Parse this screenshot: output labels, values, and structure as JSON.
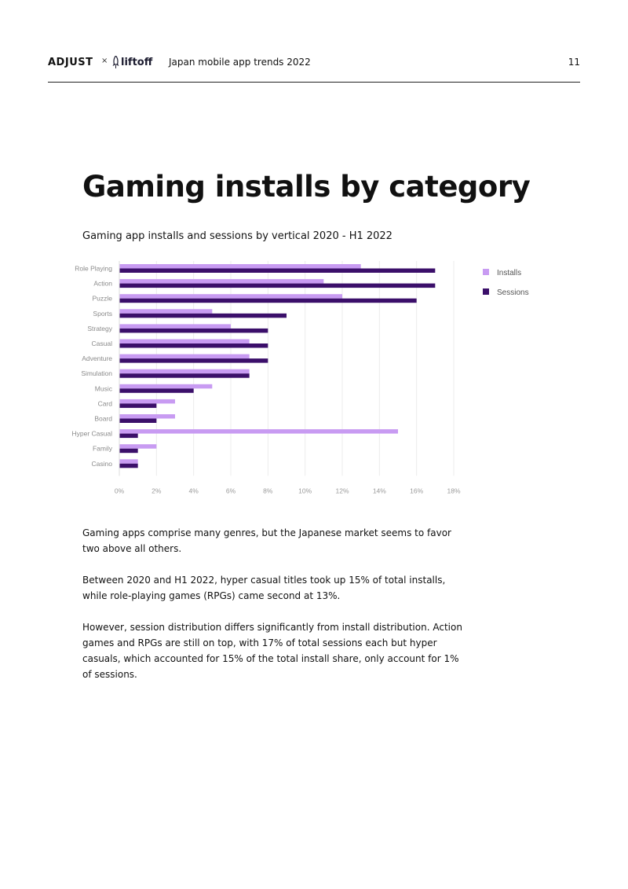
{
  "header": {
    "brand_adjust": "ADJUST",
    "brand_separator": "×",
    "brand_liftoff": "liftoff",
    "title": "Japan mobile app trends 2022",
    "page_number": "11"
  },
  "page_title": "Gaming installs by category",
  "chart_subtitle": "Gaming app installs and sessions by vertical 2020 - H1 2022",
  "chart_data": {
    "type": "bar",
    "orientation": "horizontal",
    "categories": [
      "Role Playing",
      "Action",
      "Puzzle",
      "Sports",
      "Strategy",
      "Casual",
      "Adventure",
      "Simulation",
      "Music",
      "Card",
      "Board",
      "Hyper Casual",
      "Family",
      "Casino"
    ],
    "series": [
      {
        "name": "Installs",
        "color": "#c89bf2",
        "values": [
          13,
          11,
          12,
          5,
          6,
          7,
          7,
          7,
          5,
          3,
          3,
          15,
          2,
          1
        ]
      },
      {
        "name": "Sessions",
        "color": "#3b0f6a",
        "values": [
          17,
          17,
          16,
          9,
          8,
          8,
          8,
          7,
          4,
          2,
          2,
          1,
          1,
          1
        ]
      }
    ],
    "xticks": [
      "0%",
      "2%",
      "4%",
      "6%",
      "8%",
      "10%",
      "12%",
      "14%",
      "16%",
      "18%"
    ],
    "xlim": [
      0,
      18
    ],
    "grid": true,
    "legend_position": "right"
  },
  "body": {
    "paragraphs": [
      "Gaming apps comprise many genres, but the Japanese market seems to favor two above all others.",
      "Between 2020 and H1 2022, hyper casual titles took up 15% of total installs, while role-playing games (RPGs) came second at 13%.",
      "However, session distribution differs significantly from install distribution. Action games and RPGs are still on top, with 17% of total sessions each but hyper casuals, which accounted for 15% of the total install share, only account for 1% of sessions."
    ]
  }
}
